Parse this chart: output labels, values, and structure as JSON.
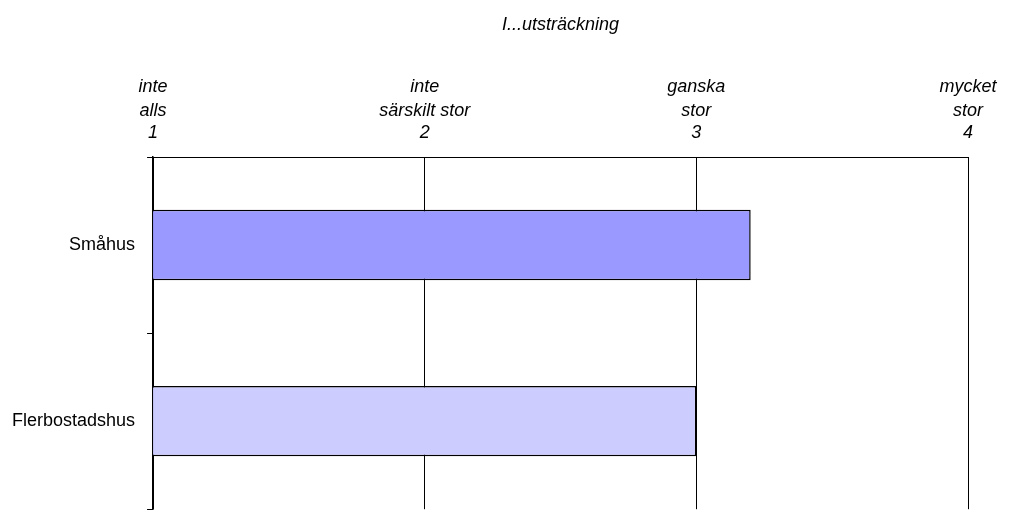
{
  "chart_data": {
    "type": "bar",
    "orientation": "horizontal",
    "xlabel": "I...utsträckning",
    "categories": [
      "Småhus",
      "Flerbostadshus"
    ],
    "values": [
      3.2,
      3.0
    ],
    "colors": [
      "#9999ff",
      "#ccccff"
    ],
    "xlim": [
      1,
      4
    ],
    "xticks": [
      1,
      2,
      3,
      4
    ],
    "annotations": [
      "inte\nalls",
      "inte\nsärskilt stor",
      "ganska\nstor",
      "mycket\nstor"
    ],
    "grid": "x",
    "legend": false
  }
}
